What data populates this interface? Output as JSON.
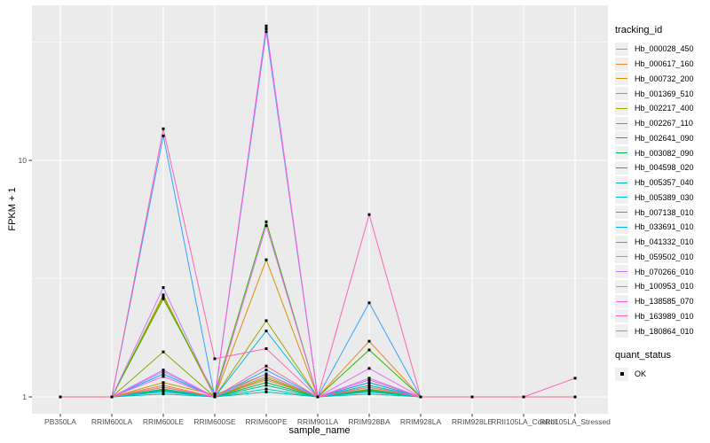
{
  "figure": {
    "background": "#FFFFFF",
    "panel_background": "#EBEBEB",
    "gridline_color": "#FFFFFF",
    "axis_text_color": "#4D4D4D",
    "tick_color": "#333333",
    "marker_color": "#000000"
  },
  "chart_data": {
    "type": "line",
    "title": "",
    "xlabel": "sample_name",
    "ylabel": "FPKM + 1",
    "y_scale": "log10",
    "y_ticks": [
      1,
      10
    ],
    "y_tick_labels": [
      "1",
      "10"
    ],
    "ylim": [
      1,
      43
    ],
    "grid": true,
    "legend_position": "right",
    "point_marker": "black-square (quant_status OK at every point)",
    "categories": [
      "PB350LA",
      "RRIM600LA",
      "RRIM600LE",
      "RRIM600SE",
      "RRIM600PE",
      "RRIM901LA",
      "RRIM928BA",
      "RRIM928LA",
      "RRIM928LE",
      "RRII105LA_Control",
      "RRII105LA_Stressed"
    ],
    "series": [
      {
        "name": "Hb_000028_450",
        "color": "#F8766D",
        "values": [
          1,
          1,
          1.1,
          1,
          1.18,
          1,
          1.08,
          1,
          1,
          1,
          1
        ]
      },
      {
        "name": "Hb_000617_160",
        "color": "#EA8331",
        "values": [
          1,
          1,
          1.12,
          1,
          1.22,
          1,
          1.72,
          1,
          1,
          1,
          1
        ]
      },
      {
        "name": "Hb_000732_200",
        "color": "#D89000",
        "values": [
          1,
          1,
          2.65,
          1,
          3.8,
          1,
          1.15,
          1,
          1,
          1,
          1
        ]
      },
      {
        "name": "Hb_001369_510",
        "color": "#C09B00",
        "values": [
          1,
          1,
          1.15,
          1.02,
          1.25,
          1,
          1.12,
          1,
          1,
          1,
          1
        ]
      },
      {
        "name": "Hb_002217_400",
        "color": "#A3A500",
        "values": [
          1,
          1,
          2.7,
          1,
          2.1,
          1,
          1.08,
          1,
          1,
          1,
          1
        ]
      },
      {
        "name": "Hb_002267_110",
        "color": "#7CAE00",
        "values": [
          1,
          1,
          1.55,
          1,
          1.2,
          1,
          1.1,
          1,
          1,
          1,
          1
        ]
      },
      {
        "name": "Hb_002641_090",
        "color": "#39B600",
        "values": [
          1,
          1,
          2.6,
          1.03,
          5.5,
          1,
          1.58,
          1,
          1,
          1,
          1
        ]
      },
      {
        "name": "Hb_003082_090",
        "color": "#00BB4E",
        "values": [
          1,
          1,
          1.07,
          1,
          1.15,
          1,
          1.07,
          1,
          1,
          1,
          1
        ]
      },
      {
        "name": "Hb_004598_020",
        "color": "#00BF7D",
        "values": [
          1,
          1,
          1.08,
          1,
          1.12,
          1,
          1.06,
          1,
          1,
          1,
          1
        ]
      },
      {
        "name": "Hb_005357_040",
        "color": "#00C1A3",
        "values": [
          1,
          1,
          1.03,
          1,
          1.05,
          1,
          1.03,
          1,
          1,
          1,
          1
        ]
      },
      {
        "name": "Hb_005389_030",
        "color": "#00BFC4",
        "values": [
          1,
          1,
          1.05,
          1,
          1.08,
          1,
          1.05,
          1,
          1,
          1,
          1
        ]
      },
      {
        "name": "Hb_007138_010",
        "color": "#00BAE0",
        "values": [
          1,
          1,
          1.06,
          1,
          1.9,
          1,
          1.12,
          1,
          1,
          1,
          1
        ]
      },
      {
        "name": "Hb_033691_010",
        "color": "#00B0F6",
        "values": [
          1,
          1,
          1.25,
          1,
          35.0,
          1,
          1.15,
          1,
          1,
          1,
          1
        ]
      },
      {
        "name": "Hb_041332_010",
        "color": "#35A2FF",
        "values": [
          1,
          1,
          12.7,
          1,
          1.3,
          1,
          2.5,
          1,
          1,
          1,
          1
        ]
      },
      {
        "name": "Hb_059502_010",
        "color": "#9590FF",
        "values": [
          1,
          1,
          1.28,
          1,
          1.25,
          1,
          1.1,
          1,
          1,
          1,
          1
        ]
      },
      {
        "name": "Hb_070266_010",
        "color": "#C77CFF",
        "values": [
          1,
          1,
          2.9,
          1,
          36.0,
          1,
          1.2,
          1,
          1,
          1,
          1
        ]
      },
      {
        "name": "Hb_100953_010",
        "color": "#E76BF3",
        "values": [
          1,
          1,
          1.3,
          1,
          5.3,
          1,
          1.32,
          1,
          1,
          1,
          1
        ]
      },
      {
        "name": "Hb_138585_070",
        "color": "#FA62DB",
        "values": [
          1,
          1,
          1.22,
          1,
          37.0,
          1,
          1.18,
          1,
          1,
          1,
          1
        ]
      },
      {
        "name": "Hb_163989_010",
        "color": "#FF62BC",
        "values": [
          1,
          1,
          13.6,
          1.45,
          1.6,
          1,
          5.9,
          1,
          1,
          1,
          1.2
        ]
      },
      {
        "name": "Hb_180864_010",
        "color": "#FF6A98",
        "values": [
          1,
          1,
          1.1,
          1,
          1.35,
          1,
          1.1,
          1,
          1,
          1,
          1
        ]
      }
    ]
  },
  "legend": {
    "series_title": "tracking_id",
    "status_title": "quant_status",
    "status_items": [
      {
        "label": "OK",
        "marker": "black-square"
      }
    ]
  }
}
